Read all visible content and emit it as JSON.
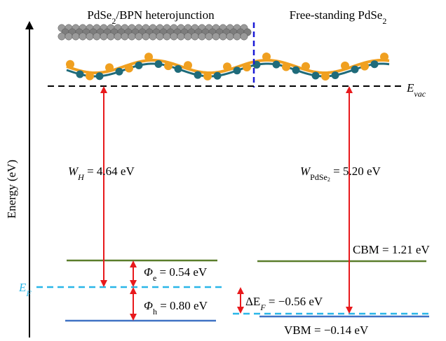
{
  "labels": {
    "left_title": [
      "PdSe",
      "2",
      "/BPN heterojunction"
    ],
    "right_title": [
      "Free-standing PdSe",
      "2"
    ],
    "vacuum": [
      "E",
      "vac"
    ],
    "y_axis": "Energy (eV)",
    "work_h": [
      "W",
      "H",
      " = 4.64 eV"
    ],
    "work_pdse2": [
      "W",
      "PdSe",
      "2",
      " = 5.20 eV"
    ],
    "cbm": "CBM = 1.21 eV",
    "phi_e": [
      "Φ",
      "e",
      " = 0.54 eV"
    ],
    "fermi": [
      "E",
      "F"
    ],
    "phi_h": [
      "Φ",
      "h",
      " = 0.80 eV"
    ],
    "delta_ef": [
      "ΔE",
      "F",
      " = −0.56 eV"
    ],
    "vbm": "VBM = −0.14 eV"
  }
}
